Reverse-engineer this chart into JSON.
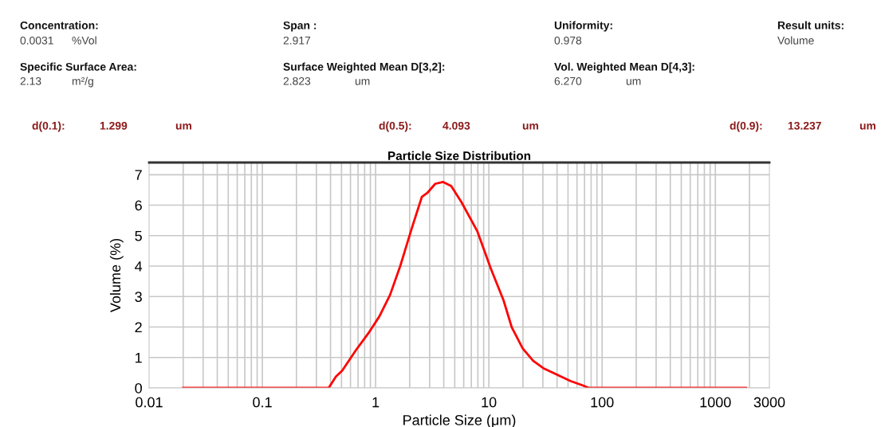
{
  "chart_data": {
    "type": "line",
    "title": "Particle Size Distribution",
    "xlabel": "Particle Size (μm)",
    "ylabel": "Volume (%)",
    "x": [
      0.02,
      0.312,
      0.385,
      0.446,
      0.507,
      0.667,
      0.865,
      1.08,
      1.34,
      1.65,
      2.07,
      2.56,
      2.86,
      3.36,
      3.95,
      4.65,
      5.73,
      7.92,
      10.4,
      13.5,
      15.9,
      19.9,
      24.6,
      30.3,
      39.9,
      52.5,
      68.1,
      76.2,
      1870
    ],
    "series": [
      {
        "color": "#ff0000",
        "values": [
          0,
          0,
          0,
          0.37,
          0.57,
          1.23,
          1.8,
          2.35,
          3.05,
          4.0,
          5.2,
          6.27,
          6.4,
          6.7,
          6.76,
          6.63,
          6.1,
          5.14,
          3.92,
          2.87,
          2.0,
          1.3,
          0.89,
          0.65,
          0.44,
          0.23,
          0.08,
          0,
          0
        ]
      }
    ],
    "log": "x",
    "xlim": [
      0.01,
      3000
    ],
    "xticks": [
      0.01,
      0.1,
      1,
      10,
      100,
      1000,
      3000
    ],
    "ylim": [
      0,
      7.4
    ],
    "yticks": [
      0,
      1,
      2,
      3,
      4,
      5,
      6,
      7
    ],
    "grid": true,
    "line_style": "solid",
    "marker": "none",
    "annotations": [
      "Concentration:",
      "0.0031",
      "%Vol",
      "Span :",
      "2.917",
      "Uniformity:",
      "0.978",
      "Result units:",
      "Volume",
      "Specific Surface Area:",
      "2.13",
      "m²/g",
      "Surface Weighted Mean D[3,2]:",
      "2.823",
      "um",
      "Vol. Weighted Mean D[4,3]:",
      "6.270",
      "um",
      "d(0.1):",
      "1.299",
      "um",
      "d(0.5):",
      "4.093",
      "um",
      "d(0.9):",
      "13.237",
      "um"
    ]
  }
}
